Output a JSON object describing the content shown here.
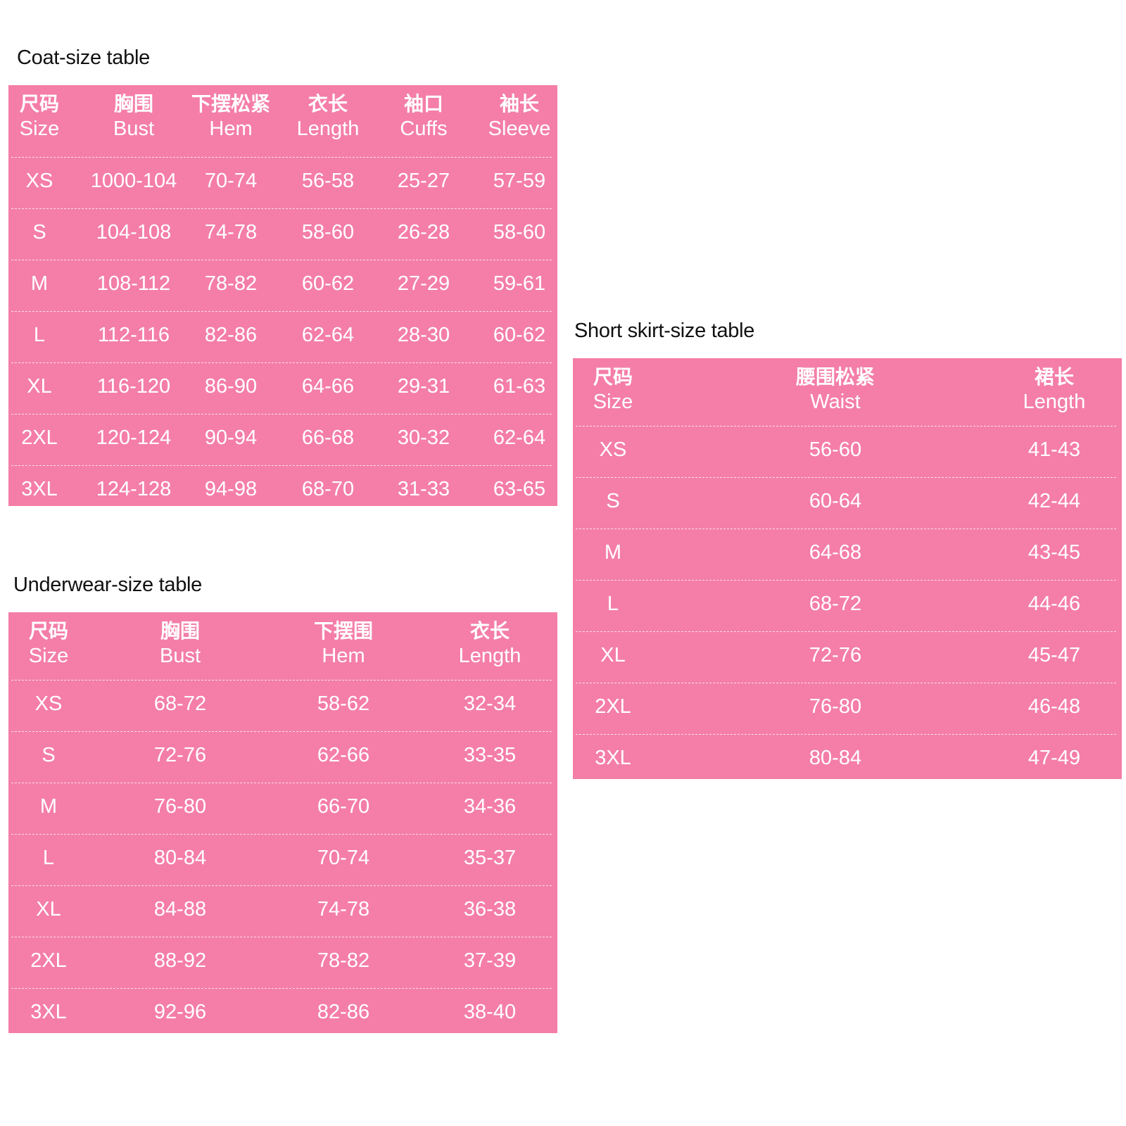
{
  "coat": {
    "title": "Coat-size table",
    "headers": [
      {
        "cn": "尺码",
        "en": "Size"
      },
      {
        "cn": "胸围",
        "en": "Bust"
      },
      {
        "cn": "下摆松紧",
        "en": "Hem"
      },
      {
        "cn": "衣长",
        "en": "Length"
      },
      {
        "cn": "袖口",
        "en": "Cuffs"
      },
      {
        "cn": "袖长",
        "en": "Sleeve"
      }
    ],
    "rows": [
      [
        "XS",
        "1000-104",
        "70-74",
        "56-58",
        "25-27",
        "57-59"
      ],
      [
        "S",
        "104-108",
        "74-78",
        "58-60",
        "26-28",
        "58-60"
      ],
      [
        "M",
        "108-112",
        "78-82",
        "60-62",
        "27-29",
        "59-61"
      ],
      [
        "L",
        "112-116",
        "82-86",
        "62-64",
        "28-30",
        "60-62"
      ],
      [
        "XL",
        "116-120",
        "86-90",
        "64-66",
        "29-31",
        "61-63"
      ],
      [
        "2XL",
        "120-124",
        "90-94",
        "66-68",
        "30-32",
        "62-64"
      ],
      [
        "3XL",
        "124-128",
        "94-98",
        "68-70",
        "31-33",
        "63-65"
      ]
    ]
  },
  "skirt": {
    "title": "Short skirt-size table",
    "headers": [
      {
        "cn": "尺码",
        "en": "Size"
      },
      {
        "cn": "腰围松紧",
        "en": "Waist"
      },
      {
        "cn": "裙长",
        "en": "Length"
      }
    ],
    "rows": [
      [
        "XS",
        "56-60",
        "41-43"
      ],
      [
        "S",
        "60-64",
        "42-44"
      ],
      [
        "M",
        "64-68",
        "43-45"
      ],
      [
        "L",
        "68-72",
        "44-46"
      ],
      [
        "XL",
        "72-76",
        "45-47"
      ],
      [
        "2XL",
        "76-80",
        "46-48"
      ],
      [
        "3XL",
        "80-84",
        "47-49"
      ]
    ]
  },
  "underwear": {
    "title": "Underwear-size table",
    "headers": [
      {
        "cn": "尺码",
        "en": "Size"
      },
      {
        "cn": "胸围",
        "en": "Bust"
      },
      {
        "cn": "下摆围",
        "en": "Hem"
      },
      {
        "cn": "衣长",
        "en": "Length"
      }
    ],
    "rows": [
      [
        "XS",
        "68-72",
        "58-62",
        "32-34"
      ],
      [
        "S",
        "72-76",
        "62-66",
        "33-35"
      ],
      [
        "M",
        "76-80",
        "66-70",
        "34-36"
      ],
      [
        "L",
        "80-84",
        "70-74",
        "35-37"
      ],
      [
        "XL",
        "84-88",
        "74-78",
        "36-38"
      ],
      [
        "2XL",
        "88-92",
        "78-82",
        "37-39"
      ],
      [
        "3XL",
        "92-96",
        "82-86",
        "38-40"
      ]
    ]
  },
  "colors": {
    "table_bg": "#f47ea8",
    "table_text": "#ffffff",
    "title_text": "#111111"
  }
}
